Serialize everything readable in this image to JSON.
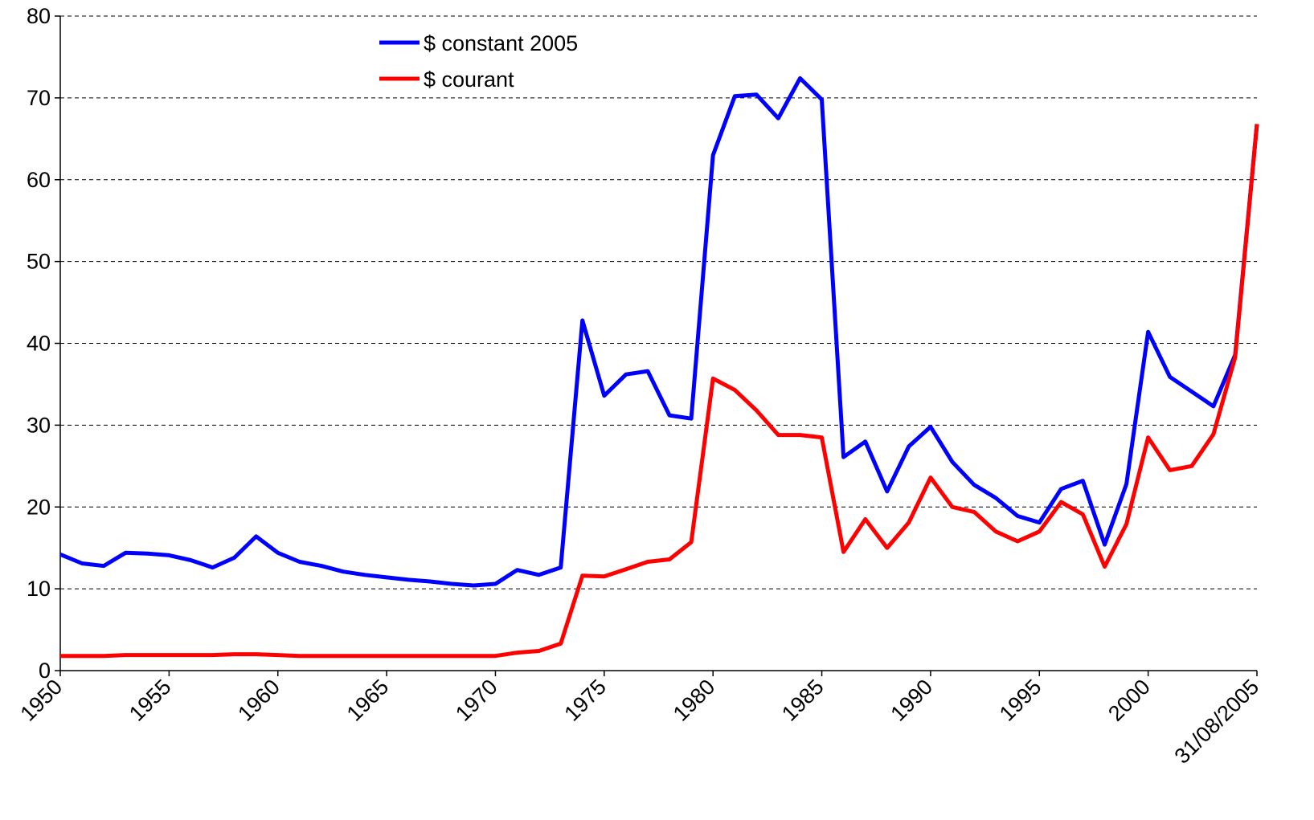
{
  "chart_data": {
    "type": "line",
    "categories": [
      "1950",
      null,
      null,
      null,
      null,
      "1955",
      null,
      null,
      null,
      null,
      "1960",
      null,
      null,
      null,
      null,
      "1965",
      null,
      null,
      null,
      null,
      "1970",
      null,
      null,
      null,
      null,
      "1975",
      null,
      null,
      null,
      null,
      "1980",
      null,
      null,
      null,
      null,
      "1985",
      null,
      null,
      null,
      null,
      "1990",
      null,
      null,
      null,
      null,
      "1995",
      null,
      null,
      null,
      null,
      "2000",
      null,
      null,
      null,
      null,
      "31/08/2005"
    ],
    "series": [
      {
        "name": "$ constant 2005",
        "color": "#0000ff",
        "values": [
          14.2,
          13.1,
          12.8,
          14.4,
          14.3,
          14.1,
          13.5,
          12.6,
          13.8,
          16.4,
          14.4,
          13.3,
          12.8,
          12.1,
          11.7,
          11.4,
          11.1,
          10.9,
          10.6,
          10.4,
          10.6,
          12.3,
          11.7,
          12.6,
          42.8,
          33.6,
          36.2,
          36.6,
          31.2,
          30.8,
          63.0,
          70.2,
          70.4,
          67.5,
          72.4,
          69.8,
          26.1,
          28.0,
          21.9,
          27.4,
          29.8,
          25.5,
          22.7,
          21.1,
          18.9,
          18.1,
          22.2,
          23.2,
          15.4,
          22.8,
          41.4,
          35.9,
          34.1,
          32.3,
          38.6,
          66.8
        ]
      },
      {
        "name": "$ courant",
        "color": "#ff0000",
        "values": [
          1.8,
          1.8,
          1.8,
          1.9,
          1.9,
          1.9,
          1.9,
          1.9,
          2.0,
          2.0,
          1.9,
          1.8,
          1.8,
          1.8,
          1.8,
          1.8,
          1.8,
          1.8,
          1.8,
          1.8,
          1.8,
          2.2,
          2.4,
          3.3,
          11.6,
          11.5,
          12.4,
          13.3,
          13.6,
          15.7,
          35.7,
          34.3,
          31.8,
          28.8,
          28.8,
          28.5,
          14.5,
          18.5,
          15.0,
          18.1,
          23.6,
          20.0,
          19.4,
          17.0,
          15.8,
          17.0,
          20.6,
          19.1,
          12.7,
          17.9,
          28.5,
          24.5,
          25.0,
          28.9,
          38.3,
          66.8
        ]
      }
    ],
    "ylim": [
      0,
      80
    ],
    "yticks": [
      0,
      10,
      20,
      30,
      40,
      50,
      60,
      70,
      80
    ],
    "grid": true
  }
}
